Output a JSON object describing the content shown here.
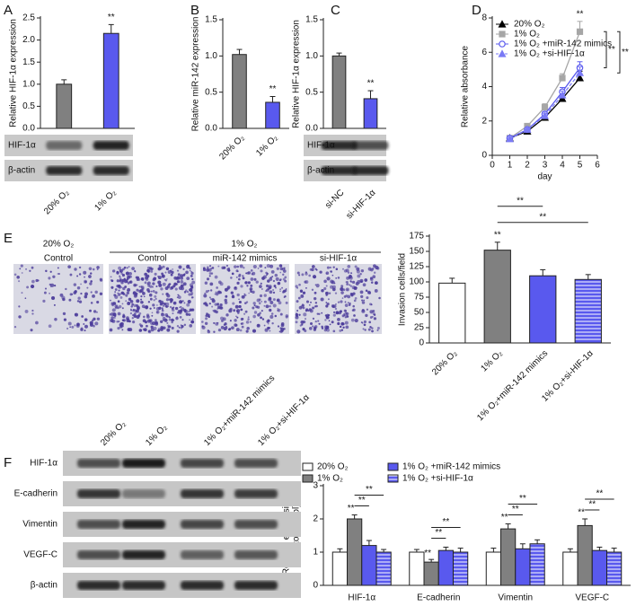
{
  "chart_data": [
    {
      "type": "bar",
      "label": "A",
      "ylabel": "Relative HIF-1α expression",
      "categories": [
        "20% O₂",
        "1% O₂"
      ],
      "values": [
        1.0,
        2.15
      ],
      "errors": [
        0.1,
        0.2
      ],
      "colors": [
        "#808080",
        "#5959ee"
      ],
      "value_annotations": [
        null,
        "**"
      ],
      "ylim": [
        0,
        2.5
      ],
      "yticks": [
        {
          "value": 0,
          "label": "0.0"
        },
        {
          "value": 0.5,
          "label": "0.5"
        },
        {
          "value": 1,
          "label": "1.0"
        },
        {
          "value": 1.5,
          "label": "1.5"
        },
        {
          "value": 2,
          "label": "2.0"
        },
        {
          "value": 2.5,
          "label": "2.5"
        }
      ],
      "blot_labels": [
        "HIF-1α",
        "β-actin"
      ]
    },
    {
      "type": "bar",
      "label": "B",
      "ylabel": "Relative miR-142 expression",
      "categories": [
        "20% O₂",
        "1% O₂"
      ],
      "values": [
        1.02,
        0.36
      ],
      "errors": [
        0.07,
        0.08
      ],
      "colors": [
        "#808080",
        "#5959ee"
      ],
      "value_annotations": [
        null,
        "**"
      ],
      "ylim": [
        0,
        1.5
      ],
      "yticks": [
        {
          "value": 0,
          "label": "0.0"
        },
        {
          "value": 0.5,
          "label": "0.5"
        },
        {
          "value": 1,
          "label": "1.0"
        },
        {
          "value": 1.5,
          "label": "1.5"
        }
      ]
    },
    {
      "type": "bar",
      "label": "C",
      "ylabel": "Relative HIF-1α expression",
      "categories": [
        "si-NC",
        "si-HIF-1α"
      ],
      "values": [
        1.0,
        0.41
      ],
      "errors": [
        0.04,
        0.11
      ],
      "colors": [
        "#808080",
        "#5959ee"
      ],
      "value_annotations": [
        null,
        "**"
      ],
      "ylim": [
        0,
        1.5
      ],
      "yticks": [
        {
          "value": 0,
          "label": "0.0"
        },
        {
          "value": 0.5,
          "label": "0.5"
        },
        {
          "value": 1,
          "label": "1.0"
        },
        {
          "value": 1.5,
          "label": "1.5"
        }
      ],
      "blot_labels": [
        "HIF-1α",
        "β-actin"
      ]
    },
    {
      "type": "line",
      "label": "D",
      "ylabel": "Relative absorbance",
      "xlabel": "day",
      "x": [
        1,
        2,
        3,
        4,
        5
      ],
      "series": [
        {
          "name": "20% O₂",
          "color": "#000000",
          "marker": "triangle",
          "dash": false,
          "values": [
            1.0,
            1.4,
            2.2,
            3.3,
            4.5
          ],
          "errors": [
            0.1,
            0.12,
            0.15,
            0.3,
            0.4
          ]
        },
        {
          "name": "1% O₂",
          "color": "#a6a6a6",
          "marker": "square",
          "dash": false,
          "values": [
            1.0,
            1.7,
            2.8,
            4.5,
            7.2
          ],
          "errors": [
            0.1,
            0.15,
            0.2,
            0.25,
            0.6
          ],
          "value_annotations": [
            null,
            null,
            null,
            null,
            "**"
          ]
        },
        {
          "name": "1% O₂ +miR-142 mimics",
          "color": "#5959ee",
          "marker": "circle-open",
          "dash": false,
          "values": [
            1.0,
            1.5,
            2.4,
            3.7,
            5.1
          ],
          "errors": [
            0.1,
            0.12,
            0.15,
            0.25,
            0.35
          ]
        },
        {
          "name": "1% O₂ +si-HIF-1α",
          "color": "#7a7af5",
          "marker": "triangle",
          "dash": true,
          "values": [
            0.95,
            1.5,
            2.3,
            3.5,
            4.8
          ],
          "errors": [
            0.1,
            0.12,
            0.15,
            0.25,
            0.35
          ]
        }
      ],
      "xlim": [
        0,
        6
      ],
      "xticks": [
        0,
        1,
        2,
        3,
        4,
        5,
        6
      ],
      "ylim": [
        0,
        8
      ],
      "yticks": [
        0,
        2,
        4,
        6,
        8
      ],
      "brackets": [
        {
          "from": 1,
          "to": 2,
          "text": "**"
        },
        {
          "from": 1,
          "to": 3,
          "text": "**"
        }
      ]
    },
    {
      "type": "bar",
      "label": "E",
      "ylabel": "Invasion cells/field",
      "categories": [
        "20% O₂",
        "1% O₂",
        "1% O₂+miR-142 mimics",
        "1% O₂+si-HIF-1α"
      ],
      "values": [
        98,
        152,
        110,
        104
      ],
      "errors": [
        8,
        13,
        10,
        8
      ],
      "colors": [
        "#ffffff",
        "#808080",
        "#5959ee",
        "#5959ee"
      ],
      "hatch": [
        false,
        false,
        false,
        true
      ],
      "value_annotations": [
        null,
        "**",
        null,
        null
      ],
      "ylim": [
        0,
        175
      ],
      "yticks": [
        0,
        25,
        50,
        75,
        100,
        125,
        150,
        175
      ],
      "brackets": [
        {
          "from": 1,
          "to": 2,
          "text": "**"
        },
        {
          "from": 1,
          "to": 3,
          "text": "**"
        }
      ]
    },
    {
      "type": "bar",
      "label": "F",
      "ylabel": [
        "Relative expression",
        "(ratio to control)"
      ],
      "categories": [
        "HIF-1α",
        "E-cadherin",
        "Vimentin",
        "VEGF-C"
      ],
      "series": [
        {
          "name": "20% O₂",
          "color": "#ffffff",
          "hatch": false,
          "values": [
            1.0,
            1.0,
            1.0,
            1.0
          ],
          "errors": [
            0.1,
            0.08,
            0.12,
            0.1
          ]
        },
        {
          "name": "1% O₂",
          "color": "#808080",
          "hatch": false,
          "values": [
            2.0,
            0.7,
            1.7,
            1.8
          ],
          "errors": [
            0.12,
            0.08,
            0.15,
            0.2
          ],
          "value_annotations": [
            "**",
            "**",
            "**",
            "**"
          ]
        },
        {
          "name": "1% O₂ +miR-142 mimics",
          "color": "#5959ee",
          "hatch": false,
          "values": [
            1.2,
            1.05,
            1.1,
            1.05
          ],
          "errors": [
            0.15,
            0.1,
            0.15,
            0.1
          ]
        },
        {
          "name": "1% O₂ +si-HIF-1α",
          "color": "#5959ee",
          "hatch": true,
          "values": [
            1.0,
            1.0,
            1.25,
            1.0
          ],
          "errors": [
            0.08,
            0.12,
            0.12,
            0.12
          ]
        }
      ],
      "ylim": [
        0,
        3
      ],
      "yticks": [
        0,
        1,
        2,
        3
      ],
      "brackets": [
        {
          "from": 1,
          "to": 2,
          "text": "**"
        },
        {
          "from": 1,
          "to": 3,
          "text": "**"
        }
      ]
    }
  ],
  "figure": {
    "panel_E": {
      "top_label": "20% O₂",
      "group_label": "1% O₂",
      "image_labels": [
        "Control",
        "Control",
        "miR-142 mimics",
        "si-HIF-1α"
      ]
    },
    "panel_F": {
      "lanes": [
        "20% O₂",
        "1% O₂",
        "1% O₂+miR-142 mimics",
        "1% O₂+si-HIF-1α"
      ],
      "rows": [
        "HIF-1α",
        "E-cadherin",
        "Vimentin",
        "VEGF-C",
        "β-actin"
      ]
    }
  }
}
